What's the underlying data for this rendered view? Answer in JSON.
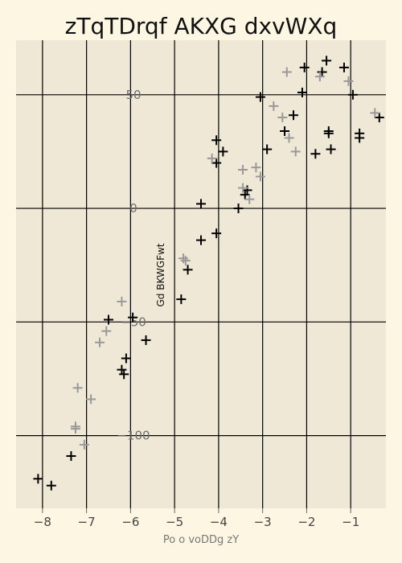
{
  "chart_data": {
    "type": "scatter",
    "title": "zTqTDrqf AKXG dxvWXq",
    "xlabel": "Po o voDDg zY",
    "ylabel": "Gd BKWGFwt",
    "xlim": [
      -8.6,
      -0.2
    ],
    "ylim": [
      -132,
      74
    ],
    "x_ticks": [
      -8,
      -7,
      -6,
      -5,
      -4,
      -3,
      -2,
      -1
    ],
    "y_ticks": [
      -100,
      -50,
      0,
      50
    ],
    "x_tick_labels": [
      "−8",
      "−7",
      "−6",
      "−5",
      "−4",
      "−3",
      "−2",
      "−1"
    ],
    "y_tick_labels": [
      "−100",
      "−50",
      "0",
      "50"
    ],
    "grid": true,
    "legend": "none",
    "colors": {
      "background": "#fdf6e3",
      "plot_area": "#efe8d6",
      "grid": "#000000"
    },
    "series": [
      {
        "color": "#000000",
        "marker": "plus",
        "points": [
          [
            -8.1,
            -119
          ],
          [
            -7.8,
            -122
          ],
          [
            -7.35,
            -109
          ],
          [
            -6.5,
            -49
          ],
          [
            -6.2,
            -71
          ],
          [
            -6.15,
            -73
          ],
          [
            -6.1,
            -66
          ],
          [
            -5.95,
            -48
          ],
          [
            -5.65,
            -58
          ],
          [
            -4.85,
            -40
          ],
          [
            -4.7,
            -27
          ],
          [
            -4.4,
            -14
          ],
          [
            -4.4,
            2
          ],
          [
            -4.05,
            -11
          ],
          [
            -4.05,
            20
          ],
          [
            -4.05,
            30
          ],
          [
            -3.9,
            25
          ],
          [
            -3.55,
            0
          ],
          [
            -3.4,
            6
          ],
          [
            -3.35,
            8
          ],
          [
            -3.05,
            49
          ],
          [
            -2.9,
            26
          ],
          [
            -2.5,
            34
          ],
          [
            -2.3,
            41
          ],
          [
            -2.1,
            51
          ],
          [
            -2.05,
            62
          ],
          [
            -1.8,
            24
          ],
          [
            -1.65,
            60
          ],
          [
            -1.55,
            65
          ],
          [
            -1.5,
            33
          ],
          [
            -1.5,
            34
          ],
          [
            -1.45,
            26
          ],
          [
            -1.15,
            62
          ],
          [
            -0.95,
            50
          ],
          [
            -0.8,
            31
          ],
          [
            -0.8,
            33
          ],
          [
            -0.35,
            40
          ]
        ]
      },
      {
        "color": "#999999",
        "marker": "plus",
        "points": [
          [
            -7.25,
            -96
          ],
          [
            -7.25,
            -97
          ],
          [
            -7.2,
            -79
          ],
          [
            -7.05,
            -104
          ],
          [
            -6.9,
            -84
          ],
          [
            -6.7,
            -59
          ],
          [
            -6.55,
            -54
          ],
          [
            -6.2,
            -41
          ],
          [
            -4.8,
            -22
          ],
          [
            -4.75,
            -23
          ],
          [
            -4.15,
            22
          ],
          [
            -3.45,
            17
          ],
          [
            -3.45,
            9
          ],
          [
            -3.3,
            4
          ],
          [
            -3.15,
            18
          ],
          [
            -3.05,
            14
          ],
          [
            -2.75,
            45
          ],
          [
            -2.55,
            40
          ],
          [
            -2.45,
            60
          ],
          [
            -2.4,
            31
          ],
          [
            -2.25,
            25
          ],
          [
            -1.7,
            58
          ],
          [
            -1.05,
            56
          ],
          [
            -0.45,
            42
          ]
        ]
      }
    ]
  }
}
